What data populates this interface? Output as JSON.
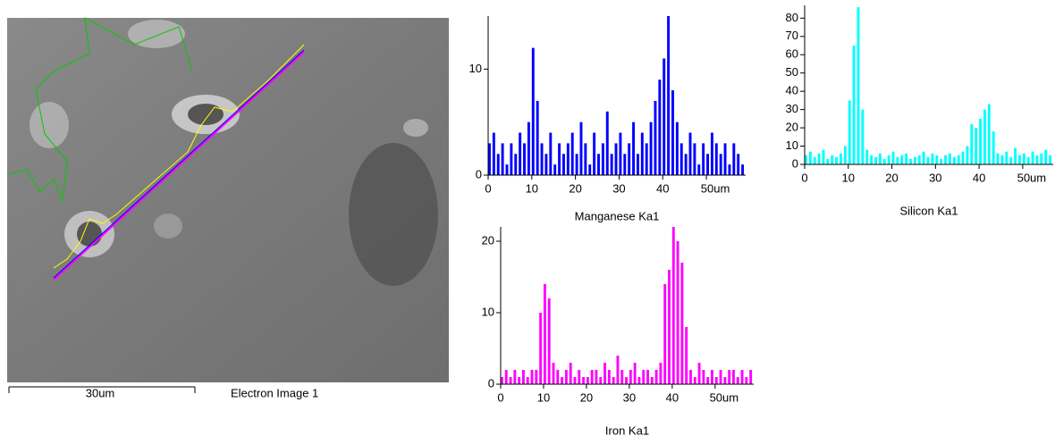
{
  "image": {
    "scale_label": "30um",
    "caption": "Electron Image 1"
  },
  "chart_data": [
    {
      "type": "bar",
      "x_label": "Manganese Ka1",
      "color": "#0000ff",
      "x": [
        0,
        1,
        2,
        3,
        4,
        5,
        6,
        7,
        8,
        9,
        10,
        11,
        12,
        13,
        14,
        15,
        16,
        17,
        18,
        19,
        20,
        21,
        22,
        23,
        24,
        25,
        26,
        27,
        28,
        29,
        30,
        31,
        32,
        33,
        34,
        35,
        36,
        37,
        38,
        39,
        40,
        41,
        42,
        43,
        44,
        45,
        46,
        47,
        48,
        49,
        50,
        51,
        52,
        53,
        54,
        55,
        56,
        57,
        58
      ],
      "values": [
        3,
        4,
        2,
        3,
        1,
        3,
        2,
        4,
        3,
        5,
        12,
        7,
        3,
        2,
        4,
        1,
        3,
        2,
        3,
        4,
        2,
        5,
        3,
        1,
        4,
        2,
        3,
        6,
        2,
        3,
        4,
        2,
        3,
        5,
        2,
        4,
        3,
        5,
        7,
        9,
        11,
        15,
        8,
        5,
        3,
        2,
        4,
        3,
        1,
        3,
        2,
        4,
        3,
        2,
        3,
        1,
        3,
        2,
        1
      ],
      "xlim": [
        0,
        59
      ],
      "ylim": [
        0,
        15
      ],
      "xticks": [
        0,
        10,
        20,
        30,
        40,
        {
          "value": 50,
          "label": "50um"
        }
      ],
      "yticks": [
        0,
        10
      ]
    },
    {
      "type": "bar",
      "x_label": "Silicon Ka1",
      "color": "#00ffff",
      "x": [
        0,
        1,
        2,
        3,
        4,
        5,
        6,
        7,
        8,
        9,
        10,
        11,
        12,
        13,
        14,
        15,
        16,
        17,
        18,
        19,
        20,
        21,
        22,
        23,
        24,
        25,
        26,
        27,
        28,
        29,
        30,
        31,
        32,
        33,
        34,
        35,
        36,
        37,
        38,
        39,
        40,
        41,
        42,
        43,
        44,
        45,
        46,
        47,
        48,
        49,
        50,
        51,
        52,
        53,
        54,
        55,
        56
      ],
      "values": [
        5,
        7,
        4,
        6,
        8,
        3,
        5,
        4,
        6,
        10,
        35,
        65,
        86,
        30,
        8,
        5,
        4,
        6,
        3,
        5,
        7,
        4,
        5,
        6,
        3,
        4,
        5,
        7,
        4,
        6,
        5,
        3,
        5,
        6,
        4,
        5,
        7,
        10,
        22,
        20,
        25,
        30,
        33,
        18,
        6,
        5,
        7,
        4,
        9,
        5,
        6,
        4,
        7,
        5,
        6,
        8,
        5
      ],
      "xlim": [
        0,
        57
      ],
      "ylim": [
        0,
        87
      ],
      "xticks": [
        0,
        10,
        20,
        30,
        40,
        {
          "value": 50,
          "label": "50um"
        }
      ],
      "yticks": [
        0,
        10,
        20,
        30,
        40,
        50,
        60,
        70,
        80
      ]
    },
    {
      "type": "bar",
      "x_label": "Iron Ka1",
      "color": "#ff00ff",
      "x": [
        0,
        1,
        2,
        3,
        4,
        5,
        6,
        7,
        8,
        9,
        10,
        11,
        12,
        13,
        14,
        15,
        16,
        17,
        18,
        19,
        20,
        21,
        22,
        23,
        24,
        25,
        26,
        27,
        28,
        29,
        30,
        31,
        32,
        33,
        34,
        35,
        36,
        37,
        38,
        39,
        40,
        41,
        42,
        43,
        44,
        45,
        46,
        47,
        48,
        49,
        50,
        51,
        52,
        53,
        54,
        55,
        56,
        57,
        58
      ],
      "values": [
        1,
        2,
        1,
        2,
        1,
        2,
        1,
        2,
        2,
        10,
        14,
        12,
        3,
        2,
        1,
        2,
        3,
        1,
        2,
        1,
        1,
        2,
        2,
        1,
        3,
        2,
        1,
        4,
        2,
        1,
        2,
        3,
        1,
        2,
        2,
        1,
        2,
        3,
        14,
        16,
        22,
        20,
        17,
        8,
        2,
        1,
        3,
        2,
        1,
        2,
        1,
        2,
        1,
        2,
        2,
        1,
        2,
        1,
        2
      ],
      "xlim": [
        0,
        59
      ],
      "ylim": [
        0,
        22
      ],
      "xticks": [
        0,
        10,
        20,
        30,
        40,
        {
          "value": 50,
          "label": "50um"
        }
      ],
      "yticks": [
        0,
        10,
        20
      ]
    }
  ]
}
